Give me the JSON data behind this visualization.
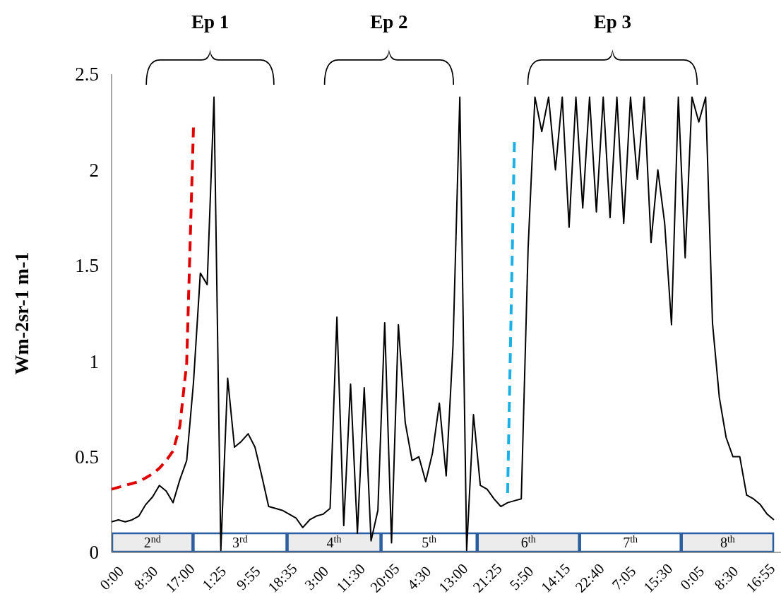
{
  "chart_data": {
    "type": "line",
    "ylabel": "Wm-2sr-1 m-1",
    "categories": [
      "0:00",
      null,
      null,
      null,
      null,
      "8:30",
      null,
      null,
      null,
      null,
      "17:00",
      null,
      null,
      null,
      null,
      "1:25",
      null,
      null,
      null,
      null,
      "9:55",
      null,
      null,
      null,
      null,
      "18:35",
      null,
      null,
      null,
      null,
      "3:00",
      null,
      null,
      null,
      null,
      "11:30",
      null,
      null,
      null,
      null,
      "20:05",
      null,
      null,
      null,
      null,
      "4:30",
      null,
      null,
      null,
      null,
      "13:00",
      null,
      null,
      null,
      null,
      "21:25",
      null,
      null,
      null,
      null,
      "5:50",
      null,
      null,
      null,
      null,
      "14:15",
      null,
      null,
      null,
      null,
      "22:40",
      null,
      null,
      null,
      null,
      "7:05",
      null,
      null,
      null,
      null,
      "15:30",
      null,
      null,
      null,
      null,
      "0:05",
      null,
      null,
      null,
      null,
      "8:30",
      null,
      null,
      null,
      null,
      "16:55",
      null,
      null
    ],
    "ylim": [
      0,
      2.5
    ],
    "yticks": [
      0,
      0.5,
      1,
      1.5,
      2,
      2.5
    ],
    "marker": "none",
    "series": [
      {
        "color": "#000000",
        "line_style": "solid",
        "values": [
          0.16,
          0.17,
          0.16,
          0.17,
          0.19,
          0.25,
          0.29,
          0.35,
          0.32,
          0.26,
          0.38,
          0.48,
          0.89,
          1.46,
          1.4,
          2.38,
          0.01,
          0.91,
          0.55,
          0.58,
          0.62,
          0.55,
          0.4,
          0.24,
          0.23,
          0.22,
          0.2,
          0.18,
          0.13,
          0.17,
          0.19,
          0.2,
          0.23,
          1.23,
          0.14,
          0.88,
          0.1,
          0.86,
          0.06,
          0.22,
          1.2,
          0.05,
          1.19,
          0.68,
          0.48,
          0.5,
          0.37,
          0.52,
          0.78,
          0.4,
          1.08,
          2.38,
          0.01,
          0.72,
          0.35,
          0.33,
          0.28,
          0.24,
          0.26,
          0.27,
          0.28,
          1.59,
          2.38,
          2.2,
          2.38,
          2.0,
          2.38,
          1.7,
          2.38,
          1.8,
          2.38,
          1.78,
          2.38,
          1.75,
          2.38,
          1.72,
          2.38,
          1.95,
          2.38,
          1.62,
          2.0,
          1.72,
          1.19,
          2.38,
          1.54,
          2.38,
          2.25,
          2.38,
          1.2,
          0.81,
          0.6,
          0.5,
          0.5,
          0.3,
          0.28,
          0.25,
          0.2,
          0.17
        ]
      },
      {
        "color": "#e00000",
        "line_style": "dashed",
        "values": [
          0.33,
          0.34,
          0.35,
          0.36,
          0.37,
          0.39,
          0.41,
          0.44,
          0.48,
          0.53,
          0.66,
          0.99,
          2.23,
          null,
          null,
          null,
          null,
          null,
          null,
          null,
          null,
          null,
          null,
          null,
          null,
          null,
          null,
          null,
          null,
          null,
          null,
          null,
          null,
          null,
          null,
          null,
          null,
          null,
          null,
          null,
          null,
          null,
          null,
          null,
          null,
          null,
          null,
          null,
          null,
          null,
          null,
          null,
          null,
          null,
          null,
          null,
          null,
          null,
          null,
          null,
          null,
          null,
          null,
          null,
          null,
          null,
          null,
          null,
          null,
          null,
          null,
          null,
          null,
          null,
          null,
          null,
          null,
          null,
          null,
          null,
          null,
          null,
          null,
          null,
          null,
          null,
          null,
          null,
          null,
          null,
          null,
          null,
          null,
          null,
          null,
          null,
          null,
          null
        ]
      },
      {
        "color": "#1ab0e8",
        "line_style": "dashed",
        "values": [
          null,
          null,
          null,
          null,
          null,
          null,
          null,
          null,
          null,
          null,
          null,
          null,
          null,
          null,
          null,
          null,
          null,
          null,
          null,
          null,
          null,
          null,
          null,
          null,
          null,
          null,
          null,
          null,
          null,
          null,
          null,
          null,
          null,
          null,
          null,
          null,
          null,
          null,
          null,
          null,
          null,
          null,
          null,
          null,
          null,
          null,
          null,
          null,
          null,
          null,
          null,
          null,
          null,
          null,
          null,
          null,
          null,
          null,
          0.31,
          2.16,
          null,
          null,
          null,
          null,
          null,
          null,
          null,
          null,
          null,
          null,
          null,
          null,
          null,
          null,
          null,
          null,
          null,
          null,
          null,
          null,
          null,
          null,
          null,
          null,
          null,
          null,
          null,
          null,
          null,
          null,
          null,
          null,
          null,
          null,
          null,
          null,
          null,
          null
        ]
      }
    ],
    "annotations": [
      "2$^{nd}$",
      "3$^{rd}$",
      "4$^{th}$",
      "5$^{th}$",
      "6$^{th}$",
      "7$^{th}$",
      "8$^{th}$",
      "Ep 1",
      "Ep 2",
      "Ep 3"
    ]
  }
}
